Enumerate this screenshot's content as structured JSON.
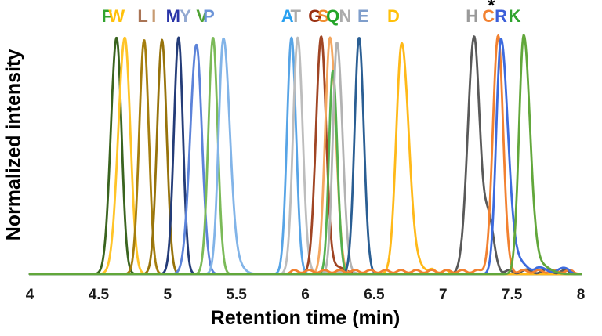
{
  "chart_data": {
    "type": "line",
    "title": "",
    "xlabel": "Retention time (min)",
    "ylabel": "Normalized intensity",
    "xlim": [
      4,
      8
    ],
    "ylim": [
      0,
      1
    ],
    "grid": false,
    "legend_position": "top-inline-letters",
    "xticks": [
      {
        "v": 4,
        "label": "4"
      },
      {
        "v": 4.5,
        "label": "4.5"
      },
      {
        "v": 5,
        "label": "5"
      },
      {
        "v": 5.5,
        "label": "5.5"
      },
      {
        "v": 6,
        "label": "6"
      },
      {
        "v": 6.5,
        "label": "6.5"
      },
      {
        "v": 7,
        "label": "7"
      },
      {
        "v": 7.5,
        "label": "7.5"
      },
      {
        "v": 8,
        "label": "8"
      }
    ],
    "annotation": {
      "text": "*",
      "rt": 7.35,
      "refers_to": "C"
    },
    "series": [
      {
        "name": "F",
        "rt": 4.63,
        "label_rt": 4.56,
        "label_color": "#31A32E",
        "color": "#3A641F",
        "peaks": [
          {
            "c": 4.63,
            "h": 1.0,
            "sl": 0.042,
            "sr": 0.036
          }
        ]
      },
      {
        "name": "W",
        "rt": 4.69,
        "label_rt": 4.63,
        "label_color": "#FFC008",
        "color": "#FFC428",
        "peaks": [
          {
            "c": 4.69,
            "h": 1.0,
            "sl": 0.048,
            "sr": 0.04
          }
        ]
      },
      {
        "name": "L",
        "rt": 4.83,
        "label_rt": 4.82,
        "label_color": "#A97455",
        "color": "#A57E0E",
        "peaks": [
          {
            "c": 4.83,
            "h": 0.99,
            "sl": 0.036,
            "sr": 0.034
          }
        ]
      },
      {
        "name": "I",
        "rt": 4.96,
        "label_rt": 4.9,
        "label_color": "#C79B72",
        "color": "#97730B",
        "peaks": [
          {
            "c": 4.96,
            "h": 0.99,
            "sl": 0.036,
            "sr": 0.034
          }
        ]
      },
      {
        "name": "M",
        "rt": 5.08,
        "label_rt": 5.04,
        "label_color": "#2A35A8",
        "color": "#243C78",
        "peaks": [
          {
            "c": 5.08,
            "h": 1.0,
            "sl": 0.034,
            "sr": 0.032
          }
        ]
      },
      {
        "name": "Y",
        "rt": 5.21,
        "label_rt": 5.13,
        "label_color": "#93A9D1",
        "color": "#5C83D9",
        "peaks": [
          {
            "c": 5.21,
            "h": 0.97,
            "sl": 0.046,
            "sr": 0.04
          }
        ]
      },
      {
        "name": "V",
        "rt": 5.33,
        "label_rt": 5.25,
        "label_color": "#4EA233",
        "color": "#7BBA58",
        "peaks": [
          {
            "c": 5.33,
            "h": 1.0,
            "sl": 0.034,
            "sr": 0.034
          }
        ]
      },
      {
        "name": "P",
        "rt": 5.4,
        "label_rt": 5.3,
        "label_color": "#6C94D8",
        "color": "#82B4E8",
        "peaks": [
          {
            "c": 5.405,
            "h": 0.99,
            "sl": 0.034,
            "sr": 0.046
          },
          {
            "c": 5.5,
            "h": 0.04,
            "s": 0.05
          }
        ]
      },
      {
        "name": "A",
        "rt": 5.9,
        "label_rt": 5.87,
        "label_color": "#28A0F0",
        "color": "#57A4E6",
        "peaks": [
          {
            "c": 5.9,
            "h": 1.0,
            "sl": 0.033,
            "sr": 0.033
          }
        ]
      },
      {
        "name": "T",
        "rt": 5.94,
        "label_rt": 5.93,
        "label_color": "#ABABAB",
        "color": "#BDBDBD",
        "peaks": [
          {
            "c": 5.945,
            "h": 1.0,
            "sl": 0.034,
            "sr": 0.036
          }
        ],
        "base": [
          {
            "from": 5.99,
            "to": 6.4,
            "level": 0.006,
            "amp": 0.004,
            "freq": 9
          }
        ]
      },
      {
        "name": "G",
        "rt": 6.12,
        "label_rt": 6.07,
        "label_color": "#992F11",
        "color": "#A04524",
        "peaks": [
          {
            "c": 6.115,
            "h": 1.0,
            "sl": 0.038,
            "sr": 0.036
          },
          {
            "c": 6.23,
            "h": 0.03,
            "s": 0.06
          }
        ]
      },
      {
        "name": "S",
        "rt": 6.18,
        "label_rt": 6.13,
        "label_color": "#F08D2F",
        "color": "#F4A760",
        "peaks": [
          {
            "c": 6.18,
            "h": 1.0,
            "sl": 0.036,
            "sr": 0.042
          }
        ]
      },
      {
        "name": "Q",
        "rt": 6.2,
        "label_rt": 6.2,
        "label_color": "#23A428",
        "color": "#55B04E",
        "peaks": [
          {
            "c": 6.2,
            "h": 0.86,
            "sl": 0.028,
            "sr": 0.032
          }
        ]
      },
      {
        "name": "N",
        "rt": 6.23,
        "label_rt": 6.29,
        "label_color": "#ABABAB",
        "color": "#B3B3B3",
        "peaks": [
          {
            "c": 6.23,
            "h": 0.98,
            "sl": 0.03,
            "sr": 0.04
          }
        ]
      },
      {
        "name": "E",
        "rt": 6.39,
        "label_rt": 6.42,
        "label_color": "#7F9ECB",
        "color": "#2A5E93",
        "peaks": [
          {
            "c": 6.39,
            "h": 1.0,
            "sl": 0.033,
            "sr": 0.035
          }
        ]
      },
      {
        "name": "D",
        "rt": 6.7,
        "label_rt": 6.64,
        "label_color": "#FFC008",
        "color": "#FFB919",
        "peaks": [
          {
            "c": 6.7,
            "h": 0.975,
            "sl": 0.04,
            "sr": 0.05
          },
          {
            "c": 6.82,
            "h": 0.03,
            "s": 0.05
          }
        ],
        "base": [
          {
            "from": 6.86,
            "to": 7.08,
            "level": 0.012,
            "amp": 0.007,
            "freq": 9
          }
        ]
      },
      {
        "name": "H",
        "rt": 7.22,
        "label_rt": 7.21,
        "label_color": "#9A9A9A",
        "color": "#595959",
        "peaks": [
          {
            "c": 7.225,
            "h": 1.0,
            "sl": 0.046,
            "sr": 0.04
          },
          {
            "c": 7.33,
            "h": 0.24,
            "s": 0.038
          }
        ],
        "base": [
          {
            "from": 7.42,
            "to": 7.95,
            "level": 0.012,
            "amp": 0.008,
            "freq": 7
          }
        ]
      },
      {
        "name": "C",
        "rt": 7.4,
        "label_rt": 7.33,
        "label_color": "#F28130",
        "color": "#F28130",
        "peaks": [
          {
            "c": 7.4,
            "h": 1.0,
            "sl": 0.038,
            "sr": 0.036
          }
        ],
        "base": [
          {
            "from": 5.85,
            "to": 8.0,
            "level": 0.012,
            "amp": 0.006,
            "freq": 9
          }
        ]
      },
      {
        "name": "R",
        "rt": 7.42,
        "label_rt": 7.42,
        "label_color": "#3D5FD9",
        "color": "#3D6BDE",
        "peaks": [
          {
            "c": 7.42,
            "h": 0.99,
            "sl": 0.034,
            "sr": 0.05
          },
          {
            "c": 7.55,
            "h": 0.05,
            "s": 0.06
          }
        ],
        "base": [
          {
            "from": 7.62,
            "to": 7.97,
            "level": 0.018,
            "amp": 0.009,
            "freq": 6
          }
        ]
      },
      {
        "name": "K",
        "rt": 7.58,
        "label_rt": 7.52,
        "label_color": "#2FA32E",
        "color": "#62A73B",
        "peaks": [
          {
            "c": 7.585,
            "h": 1.0,
            "sl": 0.034,
            "sr": 0.046
          },
          {
            "c": 7.7,
            "h": 0.04,
            "s": 0.07
          }
        ]
      }
    ]
  }
}
